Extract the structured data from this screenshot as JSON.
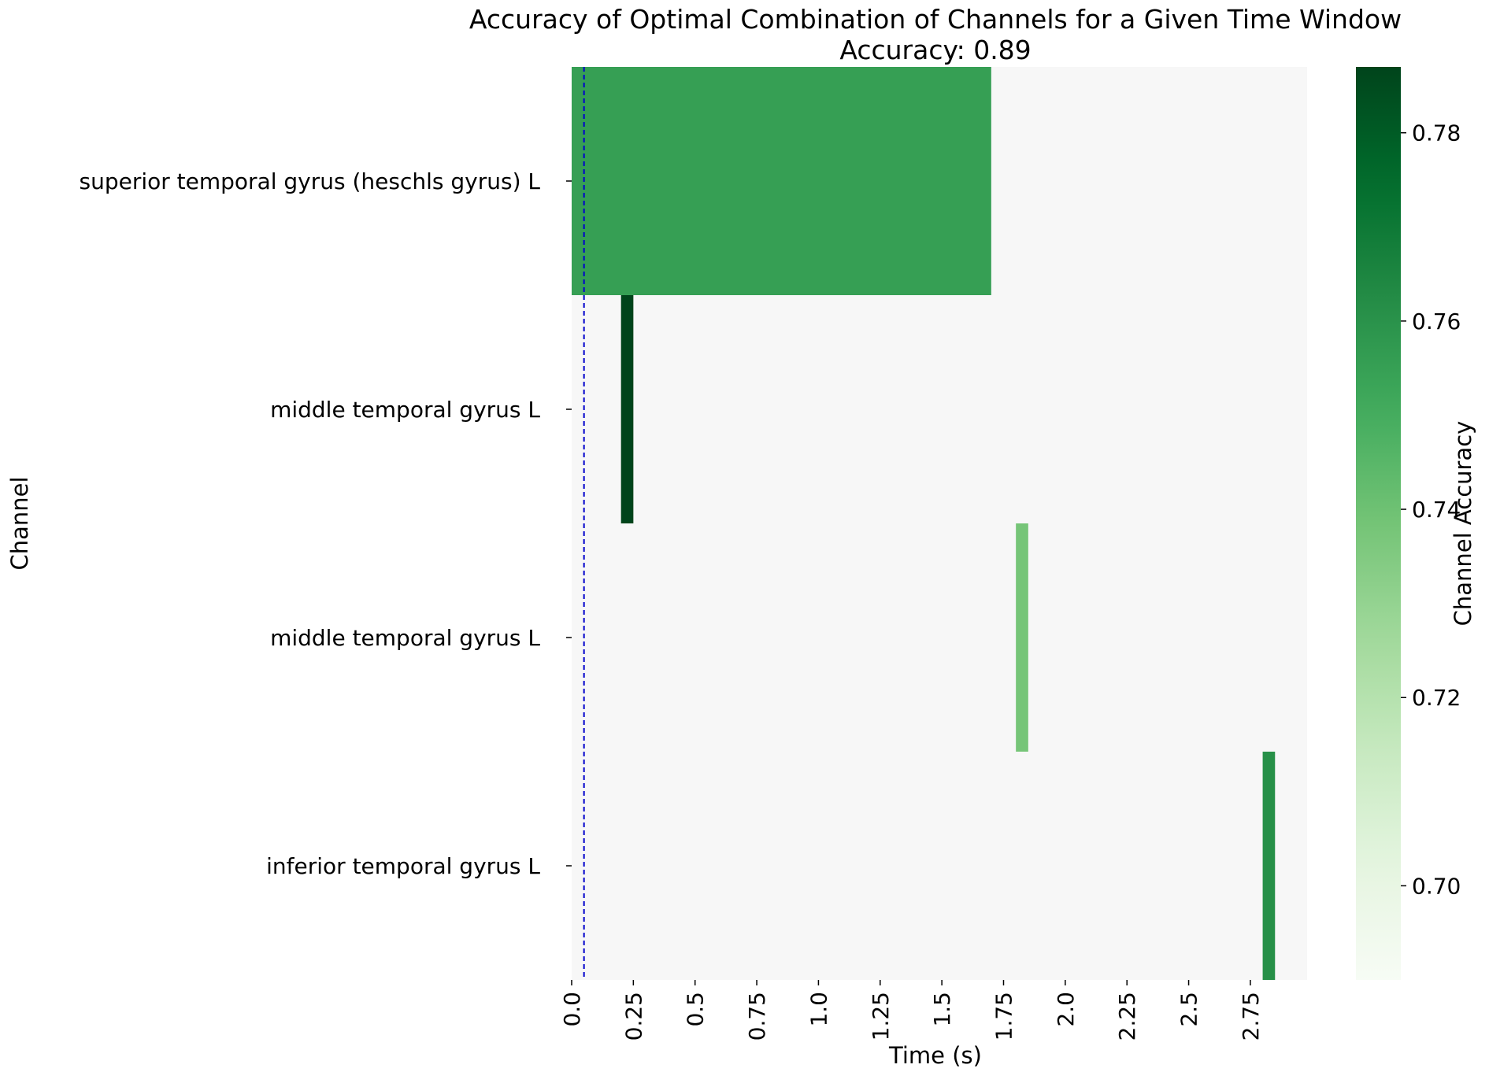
{
  "chart_data": {
    "type": "heatmap",
    "title": "Accuracy of Optimal Combination of Channels for a Given Time Window",
    "subtitle": "Accuracy: 0.89",
    "xlabel": "Time (s)",
    "ylabel": "Channel",
    "colorbar_label": "Channel Accuracy",
    "x_ticks": [
      "0.0",
      "0.25",
      "0.5",
      "0.75",
      "1.0",
      "1.25",
      "1.5",
      "1.75",
      "2.0",
      "2.25",
      "2.5",
      "2.75"
    ],
    "x_tick_values": [
      0.0,
      0.25,
      0.5,
      0.75,
      1.0,
      1.25,
      1.5,
      1.75,
      2.0,
      2.25,
      2.5,
      2.75
    ],
    "xlim": [
      0.0,
      2.98
    ],
    "channels": [
      "superior temporal gyrus (heschls gyrus) L",
      "middle temporal gyrus L",
      "middle temporal gyrus L",
      "inferior temporal gyrus L"
    ],
    "cells": [
      {
        "row": 0,
        "start": 0.0,
        "end": 1.7,
        "value": 0.755
      },
      {
        "row": 1,
        "start": 0.2,
        "end": 0.25,
        "value": 0.787
      },
      {
        "row": 2,
        "start": 1.8,
        "end": 1.85,
        "value": 0.738
      },
      {
        "row": 3,
        "start": 2.8,
        "end": 2.85,
        "value": 0.761
      }
    ],
    "marker_line": {
      "x": 0.05,
      "color": "#0000cc",
      "style": "dashed"
    },
    "background_color": "#f7f7f7",
    "colormap": "Greens",
    "color_range": [
      0.69,
      0.787
    ],
    "colorbar_ticks": [
      "0.70",
      "0.72",
      "0.74",
      "0.76",
      "0.78"
    ],
    "colorbar_tick_values": [
      0.7,
      0.72,
      0.74,
      0.76,
      0.78
    ],
    "grid": false,
    "legend": "none"
  }
}
